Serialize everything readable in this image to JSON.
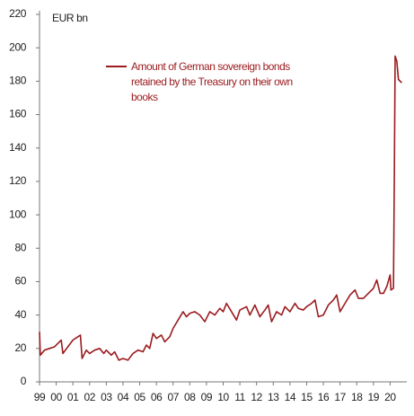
{
  "chart_data": {
    "type": "line",
    "y_label": "EUR bn",
    "x": [
      1999.0,
      1999.05,
      1999.3,
      1999.6,
      1999.9,
      2000.1,
      2000.3,
      2000.4,
      2000.7,
      2001.0,
      2001.3,
      2001.45,
      2001.55,
      2001.8,
      2002.0,
      2002.3,
      2002.6,
      2002.85,
      2003.0,
      2003.3,
      2003.5,
      2003.75,
      2004.0,
      2004.3,
      2004.6,
      2004.9,
      2005.2,
      2005.4,
      2005.6,
      2005.8,
      2006.0,
      2006.3,
      2006.5,
      2006.8,
      2007.0,
      2007.3,
      2007.6,
      2007.8,
      2008.0,
      2008.3,
      2008.6,
      2008.9,
      2009.2,
      2009.5,
      2009.8,
      2010.0,
      2010.2,
      2010.5,
      2010.8,
      2011.0,
      2011.4,
      2011.6,
      2011.9,
      2012.2,
      2012.5,
      2012.7,
      2012.9,
      2013.2,
      2013.5,
      2013.7,
      2014.0,
      2014.3,
      2014.5,
      2014.8,
      2015.0,
      2015.3,
      2015.5,
      2015.7,
      2016.0,
      2016.3,
      2016.6,
      2016.8,
      2017.0,
      2017.3,
      2017.6,
      2017.9,
      2018.1,
      2018.4,
      2018.7,
      2019.0,
      2019.2,
      2019.4,
      2019.6,
      2019.8,
      2020.0,
      2020.05,
      2020.2,
      2020.25,
      2020.3,
      2020.4,
      2020.5,
      2020.7
    ],
    "series": [
      {
        "name": "Amount of German sovereign bonds retained by the Treasury on their own books",
        "color": "#9b1b1f",
        "values": [
          30,
          16,
          19,
          20,
          21,
          23,
          25,
          17,
          21,
          25,
          27,
          28,
          14,
          19,
          17,
          19,
          20,
          17,
          19,
          16,
          18,
          13,
          14,
          13,
          17,
          19,
          18,
          22,
          20,
          29,
          26,
          28,
          24,
          27,
          32,
          37,
          42,
          39,
          41,
          42,
          40,
          36,
          42,
          40,
          44,
          42,
          47,
          42,
          37,
          43,
          45,
          40,
          46,
          39,
          43,
          46,
          36,
          42,
          40,
          45,
          42,
          47,
          44,
          43,
          45,
          47,
          49,
          39,
          40,
          46,
          49,
          52,
          42,
          47,
          52,
          55,
          50,
          50,
          53,
          56,
          61,
          53,
          53,
          57,
          64,
          55,
          56,
          120,
          195,
          192,
          181,
          179
        ]
      }
    ],
    "xlim": [
      1999,
      2021
    ],
    "xticks": [
      {
        "value": 1999,
        "label": "99"
      },
      {
        "value": 2000,
        "label": "00"
      },
      {
        "value": 2001,
        "label": "01"
      },
      {
        "value": 2002,
        "label": "02"
      },
      {
        "value": 2003,
        "label": "03"
      },
      {
        "value": 2004,
        "label": "04"
      },
      {
        "value": 2005,
        "label": "05"
      },
      {
        "value": 2006,
        "label": "06"
      },
      {
        "value": 2007,
        "label": "07"
      },
      {
        "value": 2008,
        "label": "08"
      },
      {
        "value": 2009,
        "label": "09"
      },
      {
        "value": 2010,
        "label": "10"
      },
      {
        "value": 2011,
        "label": "11"
      },
      {
        "value": 2012,
        "label": "12"
      },
      {
        "value": 2013,
        "label": "13"
      },
      {
        "value": 2014,
        "label": "14"
      },
      {
        "value": 2015,
        "label": "15"
      },
      {
        "value": 2016,
        "label": "16"
      },
      {
        "value": 2017,
        "label": "17"
      },
      {
        "value": 2018,
        "label": "18"
      },
      {
        "value": 2019,
        "label": "19"
      },
      {
        "value": 2020,
        "label": "20"
      }
    ],
    "ylim": [
      0,
      220
    ],
    "yticks": [
      0,
      20,
      40,
      60,
      80,
      100,
      120,
      140,
      160,
      180,
      200,
      220
    ],
    "grid": false
  }
}
